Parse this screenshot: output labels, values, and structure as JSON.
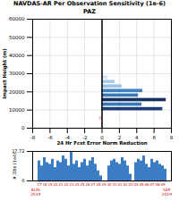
{
  "chart_data": [
    {
      "type": "bar",
      "title": "NAVDAS-AR Per Observation Sensitivity (1e-6)",
      "subtitle": "PAZ",
      "orientation": "horizontal",
      "x_label": "24 Hr Fcst Error Norm Reduction",
      "y_label": "Impact Height (m)",
      "y": [
        5500,
        10500,
        13000,
        15500,
        18000,
        20500,
        23000,
        25500,
        28000,
        30500
      ],
      "values": [
        -0.3,
        7.0,
        4.6,
        7.4,
        4.2,
        4.7,
        2.3,
        1.5,
        0.7,
        0.2
      ],
      "colors": [
        "#f2c4c4",
        "#1f3f78",
        "#3a78b4",
        "#15305e",
        "#3a78b4",
        "#3f82bf",
        "#9cc3e4",
        "#a9cbe8",
        "#d3e4f3",
        "#e6eff8"
      ],
      "xlim": [
        -8,
        8
      ],
      "xticks": [
        -8,
        -6,
        -4,
        -2,
        0,
        2,
        4,
        6,
        8
      ],
      "ylim": [
        0,
        60000
      ],
      "yticks": [
        0,
        10000,
        20000,
        30000,
        40000,
        50000,
        60000
      ],
      "grid": true
    },
    {
      "type": "bar",
      "y_label": "# Obs (1e4)",
      "categories": [
        "17",
        null,
        "18",
        null,
        "19",
        null,
        "20",
        null,
        "21",
        null,
        "22",
        null,
        "23",
        null,
        "24",
        null,
        "25",
        null,
        "26",
        null,
        "27",
        null,
        "28",
        null,
        "29",
        null,
        "30",
        null,
        "31",
        null,
        "01",
        null,
        "02",
        null,
        "03",
        null,
        "04",
        null,
        "05",
        null,
        "06",
        null,
        "07",
        null,
        "08",
        null,
        "09",
        null
      ],
      "values": [
        12,
        9,
        14,
        11,
        10,
        13,
        8,
        12,
        11,
        15,
        13,
        9,
        17.72,
        10,
        12,
        8,
        11,
        13,
        9,
        12,
        14,
        10,
        6,
        3,
        0,
        0,
        9,
        12,
        13,
        11,
        10,
        14,
        12,
        9,
        4,
        0,
        11,
        13,
        12,
        15,
        10,
        8,
        13,
        11,
        12,
        10,
        9,
        7
      ],
      "color": "#3b7dc4",
      "ylim": [
        0,
        17.72
      ],
      "yticks": [
        0,
        17.72
      ],
      "annotations": [
        "AUG\n2019",
        "SEP\n2019"
      ]
    }
  ]
}
